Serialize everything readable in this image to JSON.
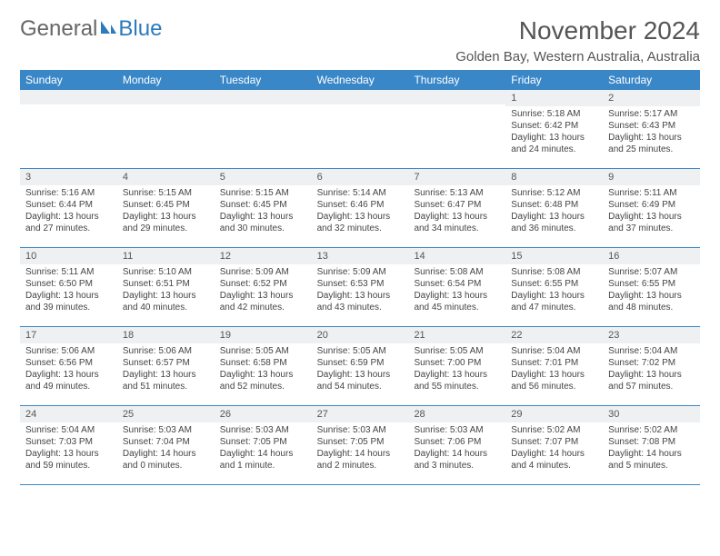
{
  "logo": {
    "part1": "General",
    "part2": "Blue"
  },
  "title": "November 2024",
  "location": "Golden Bay, Western Australia, Australia",
  "colors": {
    "header_bg": "#3a87c8",
    "header_text": "#ffffff",
    "daynum_bg": "#eef0f1",
    "rule": "#3a87c8",
    "text": "#444444",
    "title_text": "#555555"
  },
  "day_headers": [
    "Sunday",
    "Monday",
    "Tuesday",
    "Wednesday",
    "Thursday",
    "Friday",
    "Saturday"
  ],
  "weeks": [
    [
      {
        "n": "",
        "sr": "",
        "ss": "",
        "d1": "",
        "d2": ""
      },
      {
        "n": "",
        "sr": "",
        "ss": "",
        "d1": "",
        "d2": ""
      },
      {
        "n": "",
        "sr": "",
        "ss": "",
        "d1": "",
        "d2": ""
      },
      {
        "n": "",
        "sr": "",
        "ss": "",
        "d1": "",
        "d2": ""
      },
      {
        "n": "",
        "sr": "",
        "ss": "",
        "d1": "",
        "d2": ""
      },
      {
        "n": "1",
        "sr": "Sunrise: 5:18 AM",
        "ss": "Sunset: 6:42 PM",
        "d1": "Daylight: 13 hours",
        "d2": "and 24 minutes."
      },
      {
        "n": "2",
        "sr": "Sunrise: 5:17 AM",
        "ss": "Sunset: 6:43 PM",
        "d1": "Daylight: 13 hours",
        "d2": "and 25 minutes."
      }
    ],
    [
      {
        "n": "3",
        "sr": "Sunrise: 5:16 AM",
        "ss": "Sunset: 6:44 PM",
        "d1": "Daylight: 13 hours",
        "d2": "and 27 minutes."
      },
      {
        "n": "4",
        "sr": "Sunrise: 5:15 AM",
        "ss": "Sunset: 6:45 PM",
        "d1": "Daylight: 13 hours",
        "d2": "and 29 minutes."
      },
      {
        "n": "5",
        "sr": "Sunrise: 5:15 AM",
        "ss": "Sunset: 6:45 PM",
        "d1": "Daylight: 13 hours",
        "d2": "and 30 minutes."
      },
      {
        "n": "6",
        "sr": "Sunrise: 5:14 AM",
        "ss": "Sunset: 6:46 PM",
        "d1": "Daylight: 13 hours",
        "d2": "and 32 minutes."
      },
      {
        "n": "7",
        "sr": "Sunrise: 5:13 AM",
        "ss": "Sunset: 6:47 PM",
        "d1": "Daylight: 13 hours",
        "d2": "and 34 minutes."
      },
      {
        "n": "8",
        "sr": "Sunrise: 5:12 AM",
        "ss": "Sunset: 6:48 PM",
        "d1": "Daylight: 13 hours",
        "d2": "and 36 minutes."
      },
      {
        "n": "9",
        "sr": "Sunrise: 5:11 AM",
        "ss": "Sunset: 6:49 PM",
        "d1": "Daylight: 13 hours",
        "d2": "and 37 minutes."
      }
    ],
    [
      {
        "n": "10",
        "sr": "Sunrise: 5:11 AM",
        "ss": "Sunset: 6:50 PM",
        "d1": "Daylight: 13 hours",
        "d2": "and 39 minutes."
      },
      {
        "n": "11",
        "sr": "Sunrise: 5:10 AM",
        "ss": "Sunset: 6:51 PM",
        "d1": "Daylight: 13 hours",
        "d2": "and 40 minutes."
      },
      {
        "n": "12",
        "sr": "Sunrise: 5:09 AM",
        "ss": "Sunset: 6:52 PM",
        "d1": "Daylight: 13 hours",
        "d2": "and 42 minutes."
      },
      {
        "n": "13",
        "sr": "Sunrise: 5:09 AM",
        "ss": "Sunset: 6:53 PM",
        "d1": "Daylight: 13 hours",
        "d2": "and 43 minutes."
      },
      {
        "n": "14",
        "sr": "Sunrise: 5:08 AM",
        "ss": "Sunset: 6:54 PM",
        "d1": "Daylight: 13 hours",
        "d2": "and 45 minutes."
      },
      {
        "n": "15",
        "sr": "Sunrise: 5:08 AM",
        "ss": "Sunset: 6:55 PM",
        "d1": "Daylight: 13 hours",
        "d2": "and 47 minutes."
      },
      {
        "n": "16",
        "sr": "Sunrise: 5:07 AM",
        "ss": "Sunset: 6:55 PM",
        "d1": "Daylight: 13 hours",
        "d2": "and 48 minutes."
      }
    ],
    [
      {
        "n": "17",
        "sr": "Sunrise: 5:06 AM",
        "ss": "Sunset: 6:56 PM",
        "d1": "Daylight: 13 hours",
        "d2": "and 49 minutes."
      },
      {
        "n": "18",
        "sr": "Sunrise: 5:06 AM",
        "ss": "Sunset: 6:57 PM",
        "d1": "Daylight: 13 hours",
        "d2": "and 51 minutes."
      },
      {
        "n": "19",
        "sr": "Sunrise: 5:05 AM",
        "ss": "Sunset: 6:58 PM",
        "d1": "Daylight: 13 hours",
        "d2": "and 52 minutes."
      },
      {
        "n": "20",
        "sr": "Sunrise: 5:05 AM",
        "ss": "Sunset: 6:59 PM",
        "d1": "Daylight: 13 hours",
        "d2": "and 54 minutes."
      },
      {
        "n": "21",
        "sr": "Sunrise: 5:05 AM",
        "ss": "Sunset: 7:00 PM",
        "d1": "Daylight: 13 hours",
        "d2": "and 55 minutes."
      },
      {
        "n": "22",
        "sr": "Sunrise: 5:04 AM",
        "ss": "Sunset: 7:01 PM",
        "d1": "Daylight: 13 hours",
        "d2": "and 56 minutes."
      },
      {
        "n": "23",
        "sr": "Sunrise: 5:04 AM",
        "ss": "Sunset: 7:02 PM",
        "d1": "Daylight: 13 hours",
        "d2": "and 57 minutes."
      }
    ],
    [
      {
        "n": "24",
        "sr": "Sunrise: 5:04 AM",
        "ss": "Sunset: 7:03 PM",
        "d1": "Daylight: 13 hours",
        "d2": "and 59 minutes."
      },
      {
        "n": "25",
        "sr": "Sunrise: 5:03 AM",
        "ss": "Sunset: 7:04 PM",
        "d1": "Daylight: 14 hours",
        "d2": "and 0 minutes."
      },
      {
        "n": "26",
        "sr": "Sunrise: 5:03 AM",
        "ss": "Sunset: 7:05 PM",
        "d1": "Daylight: 14 hours",
        "d2": "and 1 minute."
      },
      {
        "n": "27",
        "sr": "Sunrise: 5:03 AM",
        "ss": "Sunset: 7:05 PM",
        "d1": "Daylight: 14 hours",
        "d2": "and 2 minutes."
      },
      {
        "n": "28",
        "sr": "Sunrise: 5:03 AM",
        "ss": "Sunset: 7:06 PM",
        "d1": "Daylight: 14 hours",
        "d2": "and 3 minutes."
      },
      {
        "n": "29",
        "sr": "Sunrise: 5:02 AM",
        "ss": "Sunset: 7:07 PM",
        "d1": "Daylight: 14 hours",
        "d2": "and 4 minutes."
      },
      {
        "n": "30",
        "sr": "Sunrise: 5:02 AM",
        "ss": "Sunset: 7:08 PM",
        "d1": "Daylight: 14 hours",
        "d2": "and 5 minutes."
      }
    ]
  ]
}
